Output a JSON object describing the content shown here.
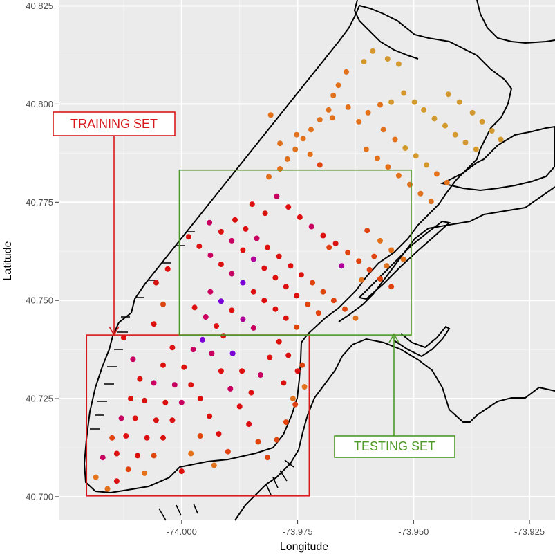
{
  "chart_data": {
    "type": "scatter",
    "title": "",
    "xlabel": "Longitude",
    "ylabel": "Latitude",
    "xlim": [
      -74.0265,
      -73.9195
    ],
    "ylim": [
      40.694,
      40.8265
    ],
    "x_ticks": [
      -74.0,
      -73.975,
      -73.95,
      -73.925
    ],
    "x_tick_labels": [
      "-74.000",
      "-73.975",
      "-73.950",
      "-73.925"
    ],
    "y_ticks": [
      40.7,
      40.725,
      40.75,
      40.775,
      40.8,
      40.825
    ],
    "y_tick_labels": [
      "40.700",
      "40.725",
      "40.750",
      "40.775",
      "40.800",
      "40.825"
    ],
    "grid": true,
    "legend": "none",
    "colors": {
      "panel": "#ebebeb",
      "grid_major": "#ffffff",
      "grid_minor": "#f5f5f5",
      "coastline": "#000000",
      "training": "#d7191c",
      "testing": "#4d9a26"
    },
    "annotations": [
      {
        "label": "TRAINING SET",
        "color": "#d7191c"
      },
      {
        "label": "TESTING SET",
        "color": "#4d9a26"
      }
    ],
    "regions": {
      "training": {
        "lon": [
          -74.0205,
          -73.9725
        ],
        "lat": [
          40.7002,
          40.7412
        ]
      },
      "testing": {
        "lon": [
          -74.0005,
          -73.9505
        ],
        "lat": [
          40.7412,
          40.7832
        ]
      }
    },
    "color_scale": [
      "#2a00ff",
      "#7b00d8",
      "#b0009a",
      "#c80060",
      "#dd1010",
      "#e0440e",
      "#e2711c",
      "#d4992e"
    ],
    "points": [
      [
        -73.9588,
        40.8135,
        7
      ],
      [
        -73.9556,
        40.8115,
        7
      ],
      [
        -73.9532,
        40.8102,
        7
      ],
      [
        -73.9607,
        40.8108,
        7
      ],
      [
        -73.9645,
        40.8082,
        6
      ],
      [
        -73.9662,
        40.8048,
        6
      ],
      [
        -73.9673,
        40.8022,
        6
      ],
      [
        -73.9683,
        40.7985,
        6
      ],
      [
        -73.9702,
        40.796,
        6
      ],
      [
        -73.9721,
        40.7935,
        6
      ],
      [
        -73.9738,
        40.7912,
        6
      ],
      [
        -73.9755,
        40.7885,
        6
      ],
      [
        -73.9772,
        40.786,
        6
      ],
      [
        -73.9788,
        40.7835,
        6
      ],
      [
        -73.9812,
        40.7815,
        6
      ],
      [
        -73.9808,
        40.7972,
        6
      ],
      [
        -73.9788,
        40.79,
        6
      ],
      [
        -73.9752,
        40.7922,
        6
      ],
      [
        -73.9723,
        40.7872,
        6
      ],
      [
        -73.9702,
        40.7845,
        5
      ],
      [
        -73.9675,
        40.7965,
        6
      ],
      [
        -73.9641,
        40.7992,
        6
      ],
      [
        -73.9618,
        40.7955,
        6
      ],
      [
        -73.9598,
        40.7978,
        6
      ],
      [
        -73.9572,
        40.7998,
        6
      ],
      [
        -73.9548,
        40.8005,
        7
      ],
      [
        -73.9521,
        40.8028,
        7
      ],
      [
        -73.9498,
        40.8005,
        7
      ],
      [
        -73.9478,
        40.7985,
        7
      ],
      [
        -73.9455,
        40.7963,
        7
      ],
      [
        -73.9432,
        40.7945,
        7
      ],
      [
        -73.941,
        40.7922,
        7
      ],
      [
        -73.9388,
        40.7902,
        7
      ],
      [
        -73.9365,
        40.7885,
        7
      ],
      [
        -73.9425,
        40.8025,
        7
      ],
      [
        -73.9401,
        40.8005,
        7
      ],
      [
        -73.9373,
        40.7978,
        7
      ],
      [
        -73.9352,
        40.7955,
        7
      ],
      [
        -73.9331,
        40.7932,
        7
      ],
      [
        -73.9312,
        40.791,
        7
      ],
      [
        -73.9565,
        40.7935,
        6
      ],
      [
        -73.954,
        40.791,
        6
      ],
      [
        -73.9518,
        40.7888,
        7
      ],
      [
        -73.9495,
        40.7868,
        7
      ],
      [
        -73.9472,
        40.7845,
        7
      ],
      [
        -73.945,
        40.7822,
        6
      ],
      [
        -73.9428,
        40.78,
        6
      ],
      [
        -73.9602,
        40.7885,
        6
      ],
      [
        -73.9578,
        40.7862,
        6
      ],
      [
        -73.9555,
        40.784,
        6
      ],
      [
        -73.9532,
        40.7818,
        6
      ],
      [
        -73.9508,
        40.7795,
        6
      ],
      [
        -73.9485,
        40.7772,
        6
      ],
      [
        -73.9462,
        40.7752,
        6
      ],
      [
        -73.9848,
        40.7745,
        4
      ],
      [
        -73.982,
        40.7722,
        4
      ],
      [
        -73.9795,
        40.7765,
        3
      ],
      [
        -73.977,
        40.7738,
        4
      ],
      [
        -73.9745,
        40.7712,
        4
      ],
      [
        -73.972,
        40.7688,
        3
      ],
      [
        -73.9695,
        40.7665,
        4
      ],
      [
        -73.9668,
        40.7645,
        4
      ],
      [
        -73.9642,
        40.7622,
        5
      ],
      [
        -73.9618,
        40.76,
        5
      ],
      [
        -73.9595,
        40.7578,
        5
      ],
      [
        -73.9572,
        40.7555,
        5
      ],
      [
        -73.9548,
        40.7535,
        5
      ],
      [
        -73.9885,
        40.7705,
        4
      ],
      [
        -73.9862,
        40.7682,
        4
      ],
      [
        -73.9838,
        40.7658,
        3
      ],
      [
        -73.9815,
        40.7635,
        4
      ],
      [
        -73.979,
        40.7612,
        4
      ],
      [
        -73.9765,
        40.7588,
        4
      ],
      [
        -73.9742,
        40.7565,
        4
      ],
      [
        -73.9718,
        40.7545,
        5
      ],
      [
        -73.9695,
        40.7522,
        5
      ],
      [
        -73.9672,
        40.75,
        5
      ],
      [
        -73.9648,
        40.7478,
        5
      ],
      [
        -73.9625,
        40.7455,
        6
      ],
      [
        -73.994,
        40.7698,
        3
      ],
      [
        -73.9915,
        40.7675,
        4
      ],
      [
        -73.9892,
        40.7652,
        3
      ],
      [
        -73.9868,
        40.7628,
        4
      ],
      [
        -73.9845,
        40.7605,
        2
      ],
      [
        -73.9822,
        40.7582,
        4
      ],
      [
        -73.9798,
        40.7558,
        4
      ],
      [
        -73.9775,
        40.7535,
        4
      ],
      [
        -73.9752,
        40.7512,
        4
      ],
      [
        -73.9728,
        40.749,
        5
      ],
      [
        -73.9705,
        40.7468,
        5
      ],
      [
        -73.9985,
        40.7662,
        4
      ],
      [
        -73.9962,
        40.7638,
        4
      ],
      [
        -73.9938,
        40.7615,
        3
      ],
      [
        -73.9915,
        40.7592,
        4
      ],
      [
        -73.9892,
        40.7568,
        3
      ],
      [
        -73.9868,
        40.7545,
        1
      ],
      [
        -73.9845,
        40.7522,
        4
      ],
      [
        -73.9822,
        40.75,
        4
      ],
      [
        -73.9798,
        40.7478,
        4
      ],
      [
        -73.9775,
        40.7455,
        4
      ],
      [
        -73.9752,
        40.7432,
        5
      ],
      [
        -73.9938,
        40.7522,
        3
      ],
      [
        -73.9915,
        40.7498,
        1
      ],
      [
        -73.9892,
        40.7475,
        4
      ],
      [
        -73.9868,
        40.7452,
        2
      ],
      [
        -73.9845,
        40.743,
        3
      ],
      [
        -73.9972,
        40.7482,
        4
      ],
      [
        -73.9948,
        40.7458,
        3
      ],
      [
        -73.9925,
        40.7435,
        4
      ],
      [
        -73.9682,
        40.7635,
        5
      ],
      [
        -73.9655,
        40.7588,
        2
      ],
      [
        -73.9612,
        40.7552,
        6
      ],
      [
        -73.9585,
        40.7612,
        5
      ],
      [
        -73.9558,
        40.7588,
        6
      ],
      [
        -73.96,
        40.7678,
        5
      ],
      [
        -73.9572,
        40.7652,
        6
      ],
      [
        -73.9548,
        40.7628,
        6
      ],
      [
        -73.9522,
        40.7605,
        6
      ],
      [
        -74.0055,
        40.7545,
        4
      ],
      [
        -74.004,
        40.749,
        5
      ],
      [
        -74.006,
        40.744,
        4
      ],
      [
        -74.003,
        40.758,
        4
      ],
      [
        -74.0125,
        40.7405,
        4
      ],
      [
        -74.0105,
        40.735,
        3
      ],
      [
        -74.009,
        40.73,
        4
      ],
      [
        -74.011,
        40.725,
        4
      ],
      [
        -74.013,
        40.72,
        3
      ],
      [
        -74.015,
        40.715,
        5
      ],
      [
        -74.017,
        40.71,
        3
      ],
      [
        -74.0185,
        40.705,
        6
      ],
      [
        -74.016,
        40.702,
        6
      ],
      [
        -74.014,
        40.704,
        4
      ],
      [
        -74.0115,
        40.707,
        5
      ],
      [
        -74.0095,
        40.7105,
        4
      ],
      [
        -74.0075,
        40.715,
        4
      ],
      [
        -74.0055,
        40.7195,
        4
      ],
      [
        -74.0035,
        40.724,
        4
      ],
      [
        -74.0015,
        40.7285,
        3
      ],
      [
        -73.9995,
        40.733,
        4
      ],
      [
        -73.9975,
        40.7375,
        3
      ],
      [
        -73.9955,
        40.74,
        1
      ],
      [
        -73.9935,
        40.7365,
        3
      ],
      [
        -73.9915,
        40.732,
        4
      ],
      [
        -73.9895,
        40.7275,
        3
      ],
      [
        -73.9875,
        40.723,
        4
      ],
      [
        -73.9855,
        40.7185,
        4
      ],
      [
        -73.9835,
        40.714,
        5
      ],
      [
        -73.9815,
        40.71,
        5
      ],
      [
        -73.9795,
        40.7145,
        5
      ],
      [
        -73.9775,
        40.719,
        5
      ],
      [
        -73.9755,
        40.7235,
        5
      ],
      [
        -73.9735,
        40.728,
        6
      ],
      [
        -73.975,
        40.732,
        4
      ],
      [
        -73.977,
        40.736,
        4
      ],
      [
        -73.979,
        40.7395,
        4
      ],
      [
        -73.981,
        40.7355,
        4
      ],
      [
        -73.983,
        40.731,
        3
      ],
      [
        -73.985,
        40.7265,
        4
      ],
      [
        -73.987,
        40.732,
        4
      ],
      [
        -73.989,
        40.7365,
        1
      ],
      [
        -73.991,
        40.741,
        4
      ],
      [
        -74.002,
        40.738,
        4
      ],
      [
        -74.004,
        40.7335,
        4
      ],
      [
        -74.006,
        40.729,
        3
      ],
      [
        -74.008,
        40.7245,
        4
      ],
      [
        -74.01,
        40.72,
        4
      ],
      [
        -74.012,
        40.7155,
        4
      ],
      [
        -74.014,
        40.711,
        4
      ],
      [
        -74.008,
        40.706,
        6
      ],
      [
        -74.006,
        40.7105,
        5
      ],
      [
        -74.004,
        40.715,
        4
      ],
      [
        -74.002,
        40.7195,
        4
      ],
      [
        -74.0,
        40.724,
        3
      ],
      [
        -73.998,
        40.7285,
        4
      ],
      [
        -73.996,
        40.725,
        4
      ],
      [
        -73.994,
        40.7205,
        4
      ],
      [
        -73.992,
        40.716,
        4
      ],
      [
        -73.99,
        40.7115,
        5
      ],
      [
        -73.996,
        40.7155,
        5
      ],
      [
        -73.998,
        40.711,
        6
      ],
      [
        -74.0,
        40.7065,
        4
      ],
      [
        -73.993,
        40.708,
        6
      ],
      [
        -73.976,
        40.725,
        6
      ],
      [
        -73.978,
        40.729,
        4
      ],
      [
        -73.974,
        40.7335,
        5
      ]
    ]
  }
}
